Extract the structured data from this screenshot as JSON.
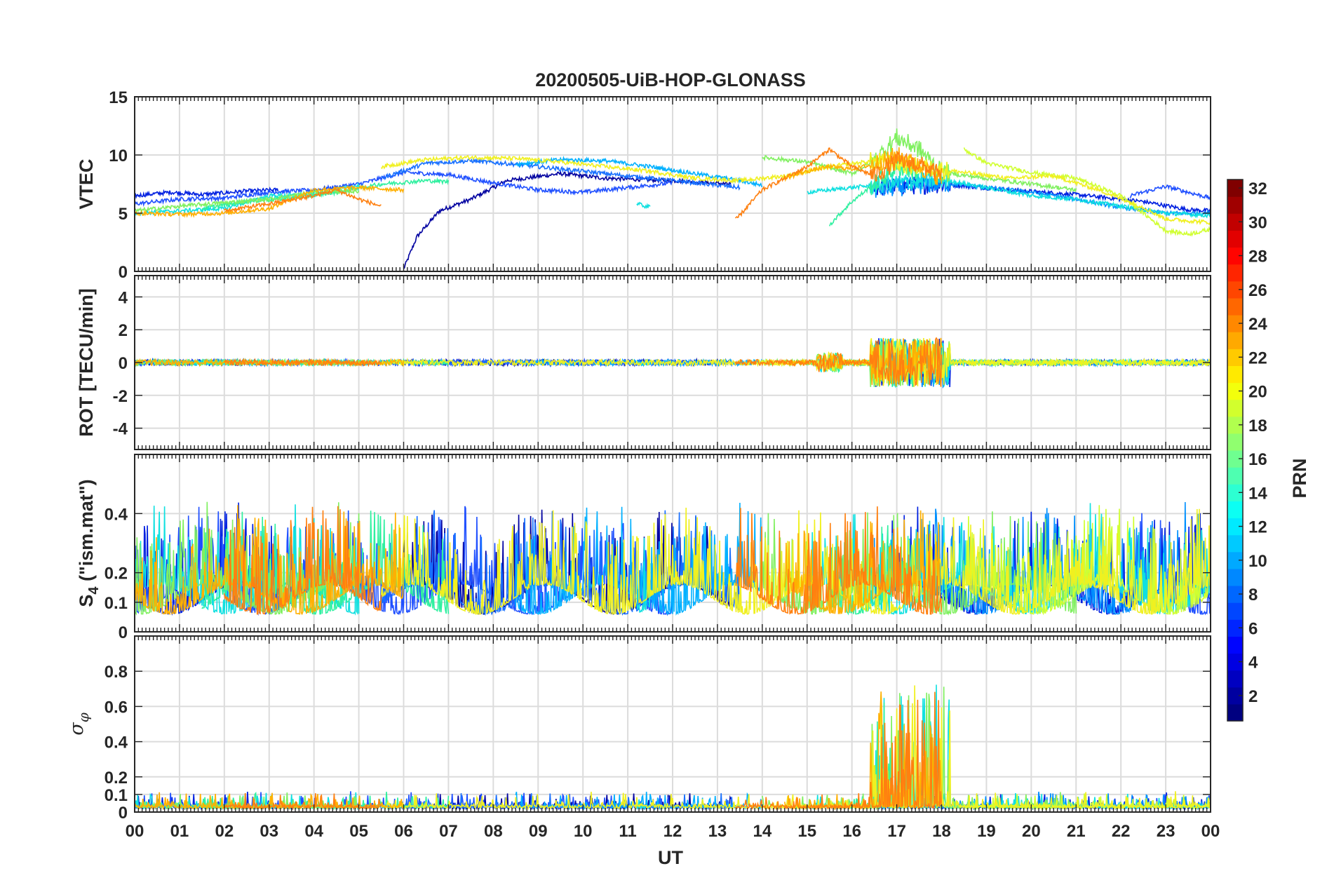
{
  "chart_data": {
    "type": "line",
    "title": "20200505-UiB-HOP-GLONASS",
    "x": {
      "label": "UT",
      "range": [
        0,
        24
      ],
      "tick_labels": [
        "00",
        "01",
        "02",
        "03",
        "04",
        "05",
        "06",
        "07",
        "08",
        "09",
        "10",
        "11",
        "12",
        "13",
        "14",
        "15",
        "16",
        "17",
        "18",
        "19",
        "20",
        "21",
        "22",
        "23",
        "00"
      ],
      "grid": true
    },
    "panels": [
      {
        "id": "vtec",
        "ylabel": "VTEC",
        "ylim": [
          0,
          15
        ],
        "yticks": [
          0,
          5,
          10,
          15
        ],
        "ytick_labels": [
          "0",
          "5",
          "10",
          "15"
        ],
        "grid": true
      },
      {
        "id": "rot",
        "ylabel": "ROT [TECU/min]",
        "ylim": [
          -5.3,
          5.3
        ],
        "yticks": [
          -4,
          -2,
          0,
          2,
          4
        ],
        "ytick_labels": [
          "-4",
          "-2",
          "0",
          "2",
          "4"
        ],
        "grid": true
      },
      {
        "id": "s4",
        "ylabel_main": "S",
        "ylabel_sub": "4",
        "ylabel_rest": " (\"ism.mat\")",
        "ylim": [
          0,
          0.6
        ],
        "yticks": [
          0,
          0.1,
          0.2,
          0.4
        ],
        "ytick_labels": [
          "0",
          "0.1",
          "0.2",
          "0.4"
        ],
        "grid": true
      },
      {
        "id": "sigphi",
        "ylabel_main": "σ",
        "ylabel_sub": "φ",
        "ylim": [
          0,
          1
        ],
        "yticks": [
          0,
          0.1,
          0.2,
          0.4,
          0.6,
          0.8
        ],
        "ytick_labels": [
          "0",
          "0.1",
          "0.2",
          "0.4",
          "0.6",
          "0.8"
        ],
        "grid": true
      }
    ],
    "colorbar": {
      "label": "PRN",
      "colormap": "jet",
      "range": [
        1,
        32
      ],
      "ticks": [
        2,
        4,
        6,
        8,
        10,
        12,
        14,
        16,
        18,
        20,
        22,
        24,
        26,
        28,
        30,
        32
      ],
      "tick_labels": [
        "2",
        "4",
        "6",
        "8",
        "10",
        "12",
        "14",
        "16",
        "18",
        "20",
        "22",
        "24",
        "26",
        "28",
        "30",
        "32"
      ]
    },
    "series": [
      {
        "prn": 1,
        "color": "#0000a0",
        "vtec": [
          [
            6.0,
            0.2
          ],
          [
            6.3,
            3.0
          ],
          [
            6.8,
            5.2
          ],
          [
            7.5,
            6.2
          ],
          [
            8.3,
            7.8
          ],
          [
            9.5,
            8.4
          ],
          [
            10.5,
            8.0
          ],
          [
            12.0,
            7.8
          ],
          [
            13.3,
            7.5
          ]
        ]
      },
      {
        "prn": 3,
        "color": "#0020e0",
        "vtec": [
          [
            0.0,
            6.5
          ],
          [
            0.8,
            6.8
          ],
          [
            1.5,
            6.6
          ],
          [
            2.5,
            6.9
          ],
          [
            3.2,
            7.0
          ],
          [
            16.5,
            7.2
          ],
          [
            18.0,
            7.5
          ],
          [
            19.5,
            7.0
          ],
          [
            21.0,
            6.6
          ],
          [
            22.5,
            6.0
          ],
          [
            23.5,
            5.3
          ],
          [
            24.0,
            5.2
          ]
        ]
      },
      {
        "prn": 5,
        "color": "#2050ff",
        "vtec": [
          [
            0.0,
            5.8
          ],
          [
            1.0,
            6.2
          ],
          [
            2.0,
            6.3
          ],
          [
            3.0,
            6.8
          ],
          [
            4.0,
            7.0
          ],
          [
            5.0,
            7.5
          ],
          [
            6.0,
            8.5
          ],
          [
            7.0,
            8.3
          ],
          [
            8.0,
            7.6
          ],
          [
            9.0,
            7.0
          ],
          [
            10.0,
            6.8
          ],
          [
            11.0,
            7.2
          ],
          [
            12.0,
            7.6
          ],
          [
            22.2,
            6.5
          ],
          [
            23.0,
            7.3
          ],
          [
            24.0,
            6.3
          ]
        ]
      },
      {
        "prn": 7,
        "color": "#1870ff",
        "vtec": [
          [
            5.5,
            8.0
          ],
          [
            6.5,
            9.3
          ],
          [
            7.5,
            9.5
          ],
          [
            8.5,
            9.2
          ],
          [
            9.5,
            8.8
          ],
          [
            10.5,
            8.4
          ],
          [
            11.5,
            8.0
          ],
          [
            12.5,
            7.6
          ],
          [
            13.5,
            7.2
          ]
        ]
      },
      {
        "prn": 9,
        "color": "#0090ff",
        "vtec": [
          [
            16.5,
            7.0
          ],
          [
            18.0,
            7.6
          ],
          [
            19.0,
            7.2
          ],
          [
            20.0,
            6.8
          ],
          [
            21.0,
            6.2
          ],
          [
            22.0,
            5.5
          ],
          [
            23.0,
            5.0
          ],
          [
            24.0,
            5.0
          ]
        ]
      },
      {
        "prn": 11,
        "color": "#00b0ff",
        "vtec": [
          [
            8.5,
            9.2
          ],
          [
            9.5,
            9.6
          ],
          [
            10.5,
            9.5
          ],
          [
            11.5,
            9.0
          ],
          [
            12.5,
            8.4
          ],
          [
            13.5,
            7.8
          ],
          [
            14.0,
            7.4
          ]
        ]
      },
      {
        "prn": 13,
        "color": "#10e0e0",
        "vtec": [
          [
            0.0,
            5.0
          ],
          [
            1.0,
            5.2
          ],
          [
            2.0,
            5.4
          ],
          [
            3.0,
            6.5
          ],
          [
            4.0,
            6.6
          ],
          [
            5.0,
            7.4
          ],
          [
            11.2,
            5.8
          ],
          [
            11.5,
            5.5
          ],
          [
            15.0,
            6.8
          ],
          [
            16.0,
            7.2
          ],
          [
            17.0,
            7.6
          ],
          [
            18.0,
            7.9
          ],
          [
            19.0,
            7.2
          ],
          [
            20.0,
            6.5
          ],
          [
            21.0,
            6.2
          ],
          [
            22.0,
            5.6
          ],
          [
            23.0,
            5.0
          ],
          [
            24.0,
            4.8
          ]
        ]
      },
      {
        "prn": 15,
        "color": "#30f0a0",
        "vtec": [
          [
            1.5,
            5.4
          ],
          [
            2.5,
            6.0
          ],
          [
            3.5,
            6.3
          ],
          [
            4.5,
            6.8
          ],
          [
            5.5,
            7.5
          ],
          [
            6.5,
            7.8
          ],
          [
            7.0,
            7.7
          ],
          [
            15.5,
            4.0
          ],
          [
            16.0,
            6.0
          ],
          [
            16.5,
            7.5
          ],
          [
            17.0,
            9.0
          ],
          [
            17.5,
            8.5
          ]
        ]
      },
      {
        "prn": 17,
        "color": "#80f060",
        "vtec": [
          [
            0.0,
            5.2
          ],
          [
            1.0,
            5.6
          ],
          [
            2.0,
            5.9
          ],
          [
            3.0,
            6.2
          ],
          [
            4.0,
            6.8
          ],
          [
            5.0,
            6.9
          ],
          [
            14.0,
            9.8
          ],
          [
            15.0,
            9.4
          ],
          [
            16.0,
            8.4
          ],
          [
            16.5,
            9.5
          ],
          [
            17.0,
            11.5
          ],
          [
            17.5,
            10.5
          ],
          [
            18.0,
            8.5
          ],
          [
            19.0,
            8.0
          ],
          [
            20.0,
            7.5
          ],
          [
            21.0,
            7.0
          ]
        ]
      },
      {
        "prn": 19,
        "color": "#d0ff30",
        "vtec": [
          [
            18.5,
            10.5
          ],
          [
            19.0,
            9.3
          ],
          [
            20.0,
            8.5
          ],
          [
            21.0,
            8.0
          ],
          [
            22.0,
            6.5
          ],
          [
            23.0,
            3.5
          ],
          [
            23.5,
            3.2
          ],
          [
            24.0,
            3.6
          ]
        ]
      },
      {
        "prn": 20,
        "color": "#f0f020",
        "vtec": [
          [
            5.5,
            9.0
          ],
          [
            6.5,
            9.6
          ],
          [
            7.5,
            9.8
          ],
          [
            8.5,
            9.7
          ],
          [
            9.5,
            9.4
          ],
          [
            10.5,
            9.0
          ],
          [
            11.5,
            8.6
          ],
          [
            12.5,
            8.0
          ],
          [
            13.5,
            7.8
          ],
          [
            14.5,
            8.2
          ],
          [
            15.5,
            9.0
          ],
          [
            16.5,
            9.5
          ],
          [
            17.5,
            9.0
          ],
          [
            18.5,
            8.5
          ],
          [
            19.5,
            8.0
          ],
          [
            20.5,
            8.2
          ],
          [
            21.5,
            7.0
          ],
          [
            22.5,
            5.5
          ],
          [
            23.0,
            4.5
          ],
          [
            24.0,
            4.2
          ]
        ]
      },
      {
        "prn": 22,
        "color": "#ffb000",
        "vtec": [
          [
            0.0,
            5.0
          ],
          [
            1.0,
            4.9
          ],
          [
            2.0,
            5.0
          ],
          [
            3.0,
            5.4
          ],
          [
            4.0,
            7.0
          ],
          [
            5.0,
            7.2
          ],
          [
            6.0,
            7.0
          ],
          [
            14.5,
            8.0
          ],
          [
            15.0,
            8.6
          ],
          [
            15.5,
            9.0
          ],
          [
            16.0,
            8.8
          ],
          [
            16.5,
            9.2
          ],
          [
            17.0,
            10.0
          ],
          [
            17.5,
            9.0
          ],
          [
            18.0,
            8.0
          ]
        ]
      },
      {
        "prn": 24,
        "color": "#ff8010",
        "vtec": [
          [
            2.0,
            5.2
          ],
          [
            3.0,
            5.8
          ],
          [
            4.0,
            6.5
          ],
          [
            4.5,
            7.0
          ],
          [
            5.0,
            6.2
          ],
          [
            5.5,
            5.6
          ],
          [
            13.4,
            4.4
          ],
          [
            14.0,
            7.0
          ],
          [
            15.0,
            9.0
          ],
          [
            15.5,
            10.5
          ],
          [
            16.0,
            9.0
          ],
          [
            16.5,
            8.2
          ],
          [
            17.0,
            9.5
          ],
          [
            17.5,
            9.2
          ],
          [
            18.0,
            8.2
          ]
        ]
      }
    ]
  }
}
